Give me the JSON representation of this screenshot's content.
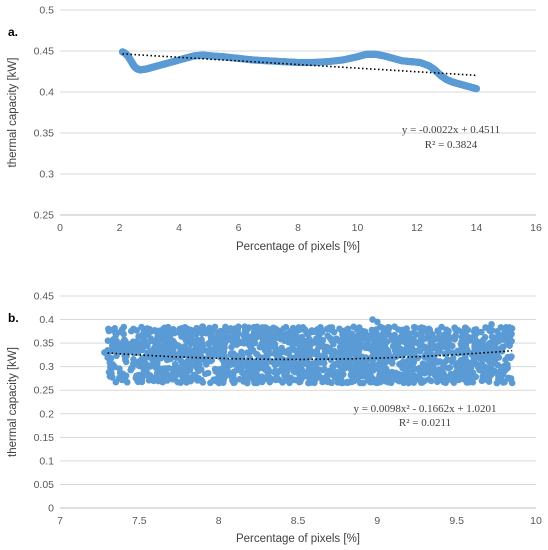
{
  "chart_data": [
    {
      "panel_label": "a.",
      "type": "scatter",
      "xlabel": "Percentage of pixels [%]",
      "ylabel": "thermal capacity [kW]",
      "xlim": [
        0,
        16
      ],
      "ylim": [
        0.25,
        0.5
      ],
      "xticks": [
        "0",
        "2",
        "4",
        "6",
        "8",
        "10",
        "12",
        "14",
        "16"
      ],
      "yticks": [
        "0.25",
        "0.3",
        "0.35",
        "0.4",
        "0.45",
        "0.5"
      ],
      "grid": true,
      "marker_color": "#5B9BD5",
      "trendline": {
        "kind": "linear",
        "coefficients": [
          -0.0022,
          0.4511
        ],
        "x_range": [
          2.1,
          14
        ],
        "color": "#000000"
      },
      "equation": "y = -0.0022x + 0.4511",
      "r_squared": "R² = 0.3824",
      "curve_points": [
        [
          2.1,
          0.449
        ],
        [
          2.2,
          0.447
        ],
        [
          2.3,
          0.443
        ],
        [
          2.4,
          0.437
        ],
        [
          2.5,
          0.431
        ],
        [
          2.6,
          0.428
        ],
        [
          2.7,
          0.427
        ],
        [
          2.9,
          0.428
        ],
        [
          3.1,
          0.43
        ],
        [
          3.3,
          0.432
        ],
        [
          3.6,
          0.435
        ],
        [
          3.9,
          0.438
        ],
        [
          4.2,
          0.441
        ],
        [
          4.5,
          0.444
        ],
        [
          4.8,
          0.445
        ],
        [
          5.1,
          0.444
        ],
        [
          5.5,
          0.443
        ],
        [
          6.0,
          0.441
        ],
        [
          6.5,
          0.439
        ],
        [
          7.0,
          0.438
        ],
        [
          7.5,
          0.437
        ],
        [
          8.0,
          0.436
        ],
        [
          8.5,
          0.436
        ],
        [
          9.0,
          0.437
        ],
        [
          9.5,
          0.439
        ],
        [
          10.0,
          0.443
        ],
        [
          10.3,
          0.446
        ],
        [
          10.6,
          0.446
        ],
        [
          10.9,
          0.444
        ],
        [
          11.2,
          0.441
        ],
        [
          11.5,
          0.438
        ],
        [
          11.8,
          0.437
        ],
        [
          12.1,
          0.436
        ],
        [
          12.4,
          0.432
        ],
        [
          12.6,
          0.427
        ],
        [
          12.8,
          0.42
        ],
        [
          13.0,
          0.415
        ],
        [
          13.2,
          0.412
        ],
        [
          13.4,
          0.41
        ],
        [
          13.6,
          0.408
        ],
        [
          13.8,
          0.406
        ],
        [
          14.0,
          0.404
        ]
      ]
    },
    {
      "panel_label": "b.",
      "type": "scatter",
      "xlabel": "Percentage of pixels [%]",
      "ylabel": "thermal capacity [kW]",
      "xlim": [
        7,
        10
      ],
      "ylim": [
        0,
        0.45
      ],
      "xticks": [
        "7",
        "7.5",
        "8",
        "8.5",
        "9",
        "9.5",
        "10"
      ],
      "yticks": [
        "0",
        "0.05",
        "0.1",
        "0.15",
        "0.2",
        "0.25",
        "0.3",
        "0.35",
        "0.4",
        "0.45"
      ],
      "grid": true,
      "marker_color": "#5B9BD5",
      "trendline": {
        "kind": "polynomial",
        "coefficients": [
          0.0098,
          -0.1662,
          1.0201
        ],
        "x_range": [
          7.3,
          9.85
        ],
        "color": "#000000"
      },
      "equation": "y = 0.0098x² - 0.1662x + 1.0201",
      "r_squared": "R² = 0.0211",
      "scatter_band": {
        "x_range": [
          7.3,
          9.85
        ],
        "y_range": [
          0.265,
          0.385
        ],
        "approx_points": 1800
      },
      "scatter_outliers": [
        [
          7.28,
          0.33
        ],
        [
          8.97,
          0.4
        ],
        [
          9.0,
          0.395
        ],
        [
          9.72,
          0.39
        ],
        [
          7.9,
          0.385
        ],
        [
          9.3,
          0.375
        ]
      ]
    }
  ]
}
